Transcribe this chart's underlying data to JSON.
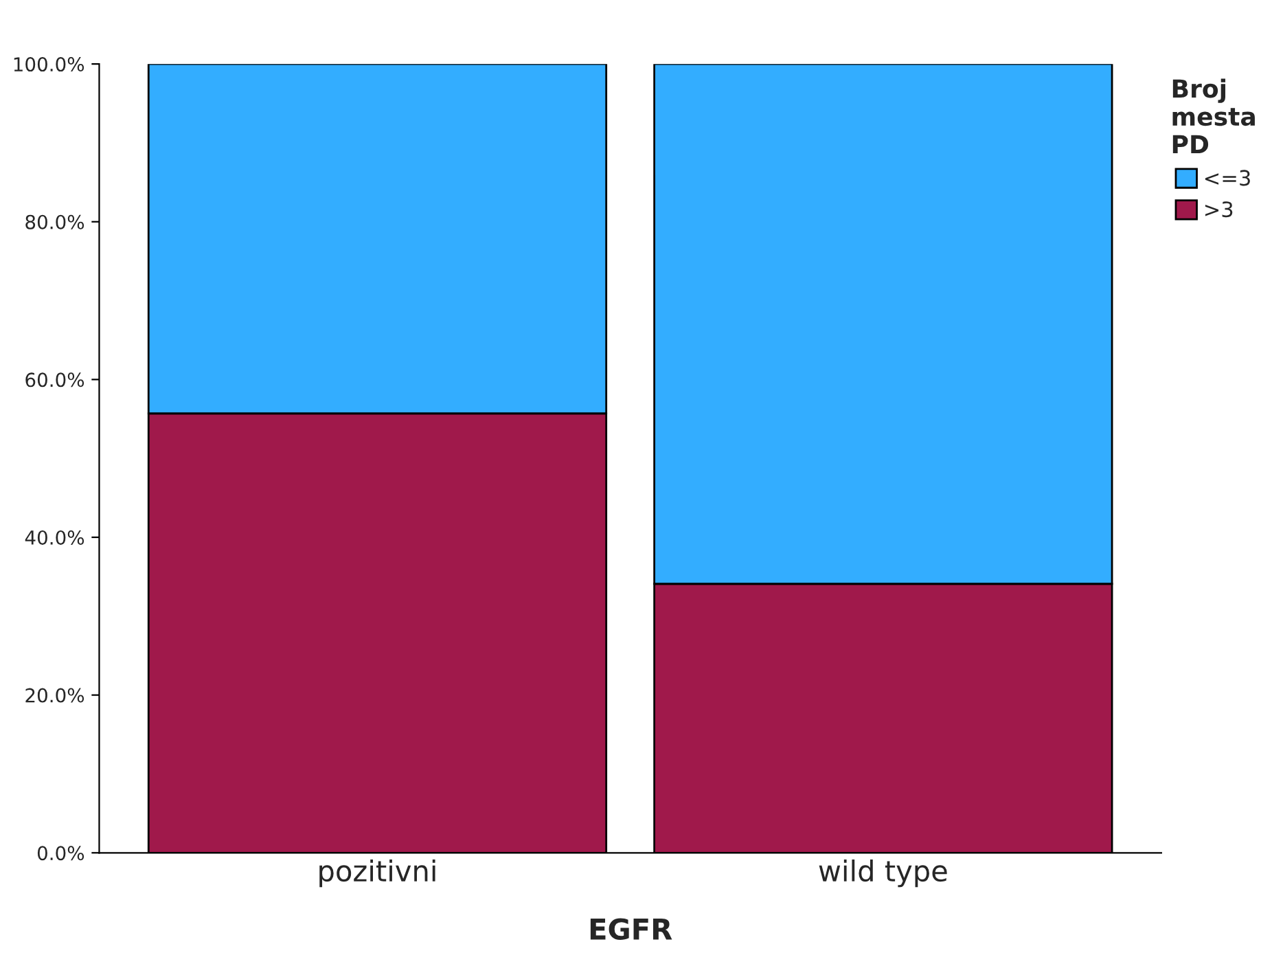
{
  "chart_data": {
    "type": "bar",
    "stacked": true,
    "xlabel": "EGFR",
    "legend_title": "Broj\nmesta\nPD",
    "legend": "top right",
    "categories": [
      "pozitivni",
      "wild type"
    ],
    "series": [
      {
        "name": ">3",
        "color": "#a0194b",
        "values": [
          55.7,
          34.1
        ]
      },
      {
        "name": "<=3",
        "color": "#33adff",
        "values": [
          44.3,
          65.9
        ]
      }
    ],
    "ylim": [
      0,
      100
    ],
    "yticks": [
      {
        "value": 0,
        "label": "0.0%"
      },
      {
        "value": 20,
        "label": "20.0%"
      },
      {
        "value": 40,
        "label": "40.0%"
      },
      {
        "value": 60,
        "label": "60.0%"
      },
      {
        "value": 80,
        "label": "80.0%"
      },
      {
        "value": 100,
        "label": "100.0%"
      }
    ],
    "grid": false
  }
}
